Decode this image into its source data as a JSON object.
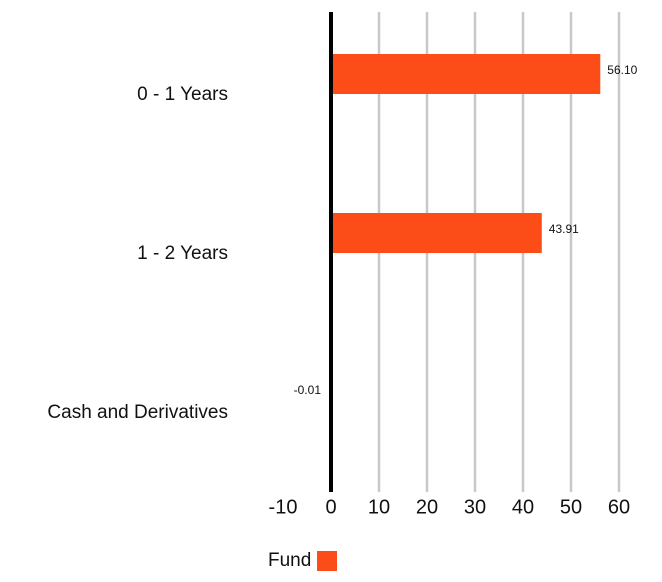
{
  "chart_data": {
    "type": "bar",
    "orientation": "horizontal",
    "categories": [
      "0 - 1 Years",
      "1 - 2 Years",
      "Cash and Derivatives"
    ],
    "series": [
      {
        "name": "Fund",
        "values": [
          56.1,
          43.91,
          -0.01
        ],
        "labels": [
          "56.10",
          "43.91",
          "-0.01"
        ],
        "color": "#FC4C17"
      }
    ],
    "xlim": [
      -10,
      60
    ],
    "xticks": [
      "-10",
      "0",
      "10",
      "20",
      "30",
      "40",
      "50",
      "60"
    ],
    "grid": true,
    "legend_position": "bottom"
  },
  "colors": {
    "bar": "#FC4C17",
    "grid": "#c8c8c8",
    "zero_axis": "#000000"
  }
}
